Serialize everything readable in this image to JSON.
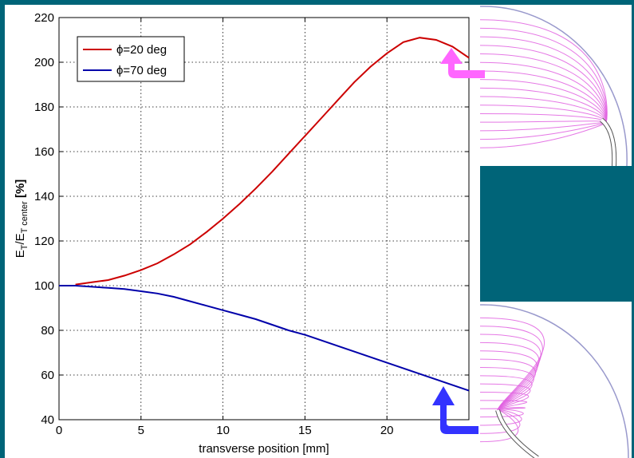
{
  "chart_data": {
    "type": "line",
    "title": "",
    "xlabel": "transverse position [mm]",
    "ylabel": {
      "base1": "E",
      "sub1": "T",
      "slash": "/E",
      "sub2": "T center",
      "unit": " [%]"
    },
    "xlim": [
      0,
      25
    ],
    "ylim": [
      40,
      220
    ],
    "xticks": [
      0,
      5,
      10,
      15,
      20
    ],
    "yticks": [
      40,
      60,
      80,
      100,
      120,
      140,
      160,
      180,
      200,
      220
    ],
    "grid": true,
    "legend_position": "top-left",
    "series": [
      {
        "name": "ϕ=20 deg",
        "color": "#cc0000",
        "x": [
          1,
          2,
          3,
          4,
          5,
          6,
          7,
          8,
          9,
          10,
          11,
          12,
          13,
          14,
          15,
          16,
          17,
          18,
          19,
          20,
          21,
          22,
          23,
          24,
          25
        ],
        "y": [
          100.5,
          101.5,
          102.5,
          104.5,
          107,
          110,
          114,
          118.5,
          124,
          130,
          136.5,
          143.5,
          151,
          159,
          167,
          175,
          183,
          191,
          198,
          204,
          209,
          211,
          210,
          207,
          202
        ]
      },
      {
        "name": "ϕ=70 deg",
        "color": "#0000aa",
        "x": [
          0,
          1,
          2,
          3,
          4,
          5,
          6,
          7,
          8,
          9,
          10,
          11,
          12,
          13,
          14,
          15,
          16,
          17,
          18,
          19,
          20,
          21,
          22,
          23,
          24,
          25
        ],
        "y": [
          100,
          100,
          99.5,
          99,
          98.5,
          97.5,
          96.5,
          95,
          93,
          91,
          89,
          87,
          85,
          82.5,
          80,
          78,
          75.5,
          73,
          70.5,
          68,
          65.5,
          63,
          60.5,
          58,
          55.5,
          53
        ]
      }
    ]
  },
  "insets": {
    "top": {
      "description_icon": "field-lines-phi-20-icon",
      "line_color": "#e060e0",
      "arrow_color": "#ff66ff"
    },
    "bottom": {
      "description_icon": "field-lines-phi-70-icon",
      "line_color": "#e060e0",
      "arrow_color": "#3333ff"
    }
  }
}
